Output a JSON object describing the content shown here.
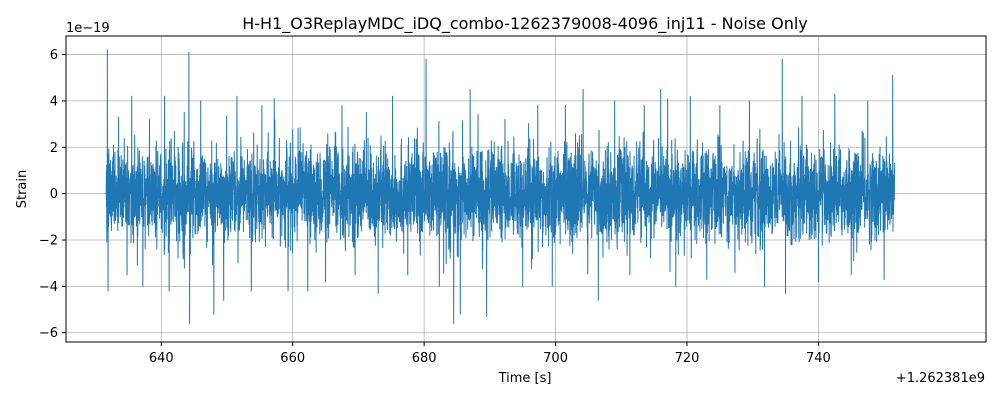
{
  "chart_data": {
    "type": "line",
    "title": "H-H1_O3ReplayMDC_iDQ_combo-1262379008-4096_inj11 - Noise Only",
    "xlabel": "Time [s]",
    "ylabel": "Strain",
    "x_offset_label": "+1.262381e9",
    "y_scale_label": "1e−19",
    "xlim": [
      625.5,
      765.5
    ],
    "ylim": [
      -6.4,
      6.8
    ],
    "x_ticks": [
      640,
      660,
      680,
      700,
      720,
      740
    ],
    "x_tick_labels": [
      "640",
      "660",
      "680",
      "700",
      "720",
      "740"
    ],
    "y_ticks": [
      -6,
      -4,
      -2,
      0,
      2,
      4,
      6
    ],
    "y_tick_labels": [
      "−6",
      "−4",
      "−2",
      "0",
      "2",
      "4",
      "6"
    ],
    "grid": true,
    "series": [
      {
        "color": "#1f77b4",
        "x_range": [
          631.6,
          751.6
        ],
        "typical_envelope": [
          -2.0,
          2.0
        ],
        "peaks": [
          {
            "x": 631.8,
            "y": 6.2
          },
          {
            "x": 631.9,
            "y": -4.2
          },
          {
            "x": 633.5,
            "y": 3.3
          },
          {
            "x": 634.8,
            "y": -3.5
          },
          {
            "x": 635.5,
            "y": 4.2
          },
          {
            "x": 637.2,
            "y": -4.0
          },
          {
            "x": 638.2,
            "y": 3.2
          },
          {
            "x": 640.5,
            "y": 4.2
          },
          {
            "x": 641.2,
            "y": -4.2
          },
          {
            "x": 643.5,
            "y": 3.5
          },
          {
            "x": 644.2,
            "y": 6.1
          },
          {
            "x": 644.3,
            "y": -5.6
          },
          {
            "x": 646.0,
            "y": 4.0
          },
          {
            "x": 648.0,
            "y": -5.2
          },
          {
            "x": 649.5,
            "y": -4.6
          },
          {
            "x": 651.5,
            "y": 4.2
          },
          {
            "x": 653.7,
            "y": -4.2
          },
          {
            "x": 655.3,
            "y": 3.8
          },
          {
            "x": 657.2,
            "y": 4.1
          },
          {
            "x": 659.3,
            "y": -4.2
          },
          {
            "x": 662.3,
            "y": -4.2
          },
          {
            "x": 665.0,
            "y": -3.8
          },
          {
            "x": 667.5,
            "y": 3.8
          },
          {
            "x": 669.5,
            "y": -3.5
          },
          {
            "x": 671.2,
            "y": 3.5
          },
          {
            "x": 673.0,
            "y": -4.3
          },
          {
            "x": 675.2,
            "y": 4.2
          },
          {
            "x": 677.5,
            "y": -3.5
          },
          {
            "x": 680.3,
            "y": 5.8
          },
          {
            "x": 682.3,
            "y": -4.0
          },
          {
            "x": 684.5,
            "y": -5.6
          },
          {
            "x": 685.5,
            "y": -5.2
          },
          {
            "x": 687.0,
            "y": 4.5
          },
          {
            "x": 689.5,
            "y": -5.3
          },
          {
            "x": 692.3,
            "y": 3.2
          },
          {
            "x": 695.0,
            "y": -4.0
          },
          {
            "x": 697.3,
            "y": 3.8
          },
          {
            "x": 699.5,
            "y": -4.0
          },
          {
            "x": 701.5,
            "y": 3.8
          },
          {
            "x": 704.2,
            "y": 4.5
          },
          {
            "x": 706.5,
            "y": -4.6
          },
          {
            "x": 709.0,
            "y": 4.0
          },
          {
            "x": 711.3,
            "y": -3.5
          },
          {
            "x": 713.5,
            "y": 3.8
          },
          {
            "x": 716.0,
            "y": 4.5
          },
          {
            "x": 718.3,
            "y": -4.0
          },
          {
            "x": 720.5,
            "y": 4.2
          },
          {
            "x": 723.0,
            "y": -3.7
          },
          {
            "x": 725.0,
            "y": 3.8
          },
          {
            "x": 727.3,
            "y": -3.4
          },
          {
            "x": 729.5,
            "y": 4.0
          },
          {
            "x": 731.8,
            "y": -4.0
          },
          {
            "x": 734.5,
            "y": 5.8
          },
          {
            "x": 735.0,
            "y": -4.3
          },
          {
            "x": 737.5,
            "y": 4.2
          },
          {
            "x": 740.0,
            "y": -3.8
          },
          {
            "x": 742.5,
            "y": 4.3
          },
          {
            "x": 745.0,
            "y": -3.5
          },
          {
            "x": 747.5,
            "y": 4.0
          },
          {
            "x": 750.0,
            "y": -3.7
          },
          {
            "x": 751.3,
            "y": 5.1
          }
        ]
      }
    ]
  }
}
